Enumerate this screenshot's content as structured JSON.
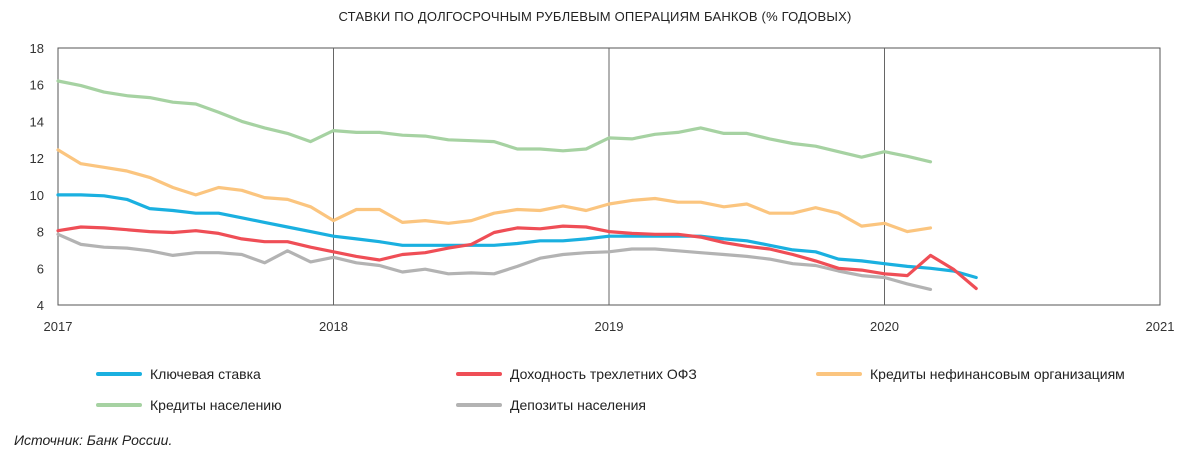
{
  "chart_data": {
    "type": "line",
    "title": "СТАВКИ ПО ДОЛГОСРОЧНЫМ РУБЛЕВЫМ ОПЕРАЦИЯМ БАНКОВ (% ГОДОВЫХ)",
    "xlabel": "",
    "ylabel": "",
    "xlim": [
      2017,
      2021
    ],
    "ylim": [
      4,
      18
    ],
    "x_ticks": [
      "2017",
      "2018",
      "2019",
      "2020",
      "2021"
    ],
    "y_ticks": [
      "4",
      "6",
      "8",
      "10",
      "12",
      "14",
      "16",
      "18"
    ],
    "grid": "vertical at years",
    "legend_position": "bottom",
    "series": [
      {
        "name": "Ключевая ставка",
        "color": "#1ab0e0",
        "x": [
          2017.0,
          2017.083,
          2017.167,
          2017.25,
          2017.333,
          2017.417,
          2017.5,
          2017.583,
          2017.667,
          2017.75,
          2017.833,
          2017.917,
          2018.0,
          2018.083,
          2018.167,
          2018.25,
          2018.333,
          2018.417,
          2018.5,
          2018.583,
          2018.667,
          2018.75,
          2018.833,
          2018.917,
          2019.0,
          2019.083,
          2019.167,
          2019.25,
          2019.333,
          2019.417,
          2019.5,
          2019.583,
          2019.667,
          2019.75,
          2019.833,
          2019.917,
          2020.0,
          2020.083,
          2020.167,
          2020.25,
          2020.333
        ],
        "y": [
          10.0,
          10.0,
          9.95,
          9.75,
          9.25,
          9.15,
          9.0,
          9.0,
          8.75,
          8.5,
          8.25,
          8.0,
          7.75,
          7.6,
          7.45,
          7.25,
          7.25,
          7.25,
          7.25,
          7.25,
          7.35,
          7.5,
          7.5,
          7.6,
          7.75,
          7.75,
          7.75,
          7.75,
          7.75,
          7.6,
          7.5,
          7.25,
          7.0,
          6.9,
          6.5,
          6.4,
          6.25,
          6.1,
          6.0,
          5.85,
          5.5
        ]
      },
      {
        "name": "Доходность трехлетних ОФЗ",
        "color": "#ef4e56",
        "x": [
          2017.0,
          2017.083,
          2017.167,
          2017.25,
          2017.333,
          2017.417,
          2017.5,
          2017.583,
          2017.667,
          2017.75,
          2017.833,
          2017.917,
          2018.0,
          2018.083,
          2018.167,
          2018.25,
          2018.333,
          2018.417,
          2018.5,
          2018.583,
          2018.667,
          2018.75,
          2018.833,
          2018.917,
          2019.0,
          2019.083,
          2019.167,
          2019.25,
          2019.333,
          2019.417,
          2019.5,
          2019.583,
          2019.667,
          2019.75,
          2019.833,
          2019.917,
          2020.0,
          2020.083,
          2020.167,
          2020.25,
          2020.333
        ],
        "y": [
          8.05,
          8.25,
          8.2,
          8.1,
          8.0,
          7.95,
          8.05,
          7.9,
          7.6,
          7.45,
          7.45,
          7.15,
          6.9,
          6.65,
          6.45,
          6.75,
          6.85,
          7.1,
          7.3,
          7.95,
          8.2,
          8.15,
          8.3,
          8.25,
          8.0,
          7.9,
          7.85,
          7.85,
          7.7,
          7.4,
          7.2,
          7.05,
          6.75,
          6.4,
          6.0,
          5.9,
          5.7,
          5.6,
          6.7,
          5.95,
          4.9
        ]
      },
      {
        "name": "Кредиты нефинансовым организациям",
        "color": "#fbc57f",
        "x": [
          2017.0,
          2017.083,
          2017.167,
          2017.25,
          2017.333,
          2017.417,
          2017.5,
          2017.583,
          2017.667,
          2017.75,
          2017.833,
          2017.917,
          2018.0,
          2018.083,
          2018.167,
          2018.25,
          2018.333,
          2018.417,
          2018.5,
          2018.583,
          2018.667,
          2018.75,
          2018.833,
          2018.917,
          2019.0,
          2019.083,
          2019.167,
          2019.25,
          2019.333,
          2019.417,
          2019.5,
          2019.583,
          2019.667,
          2019.75,
          2019.833,
          2019.917,
          2020.0,
          2020.083,
          2020.167
        ],
        "y": [
          12.45,
          11.7,
          11.5,
          11.3,
          10.95,
          10.4,
          10.0,
          10.4,
          10.25,
          9.85,
          9.75,
          9.35,
          8.6,
          9.2,
          9.2,
          8.5,
          8.6,
          8.45,
          8.6,
          9.0,
          9.2,
          9.15,
          9.4,
          9.15,
          9.5,
          9.7,
          9.8,
          9.6,
          9.6,
          9.35,
          9.5,
          9.0,
          9.0,
          9.3,
          9.0,
          8.3,
          8.45,
          8.0,
          8.2
        ]
      },
      {
        "name": "Кредиты населению",
        "color": "#a6d2a2",
        "x": [
          2017.0,
          2017.083,
          2017.167,
          2017.25,
          2017.333,
          2017.417,
          2017.5,
          2017.583,
          2017.667,
          2017.75,
          2017.833,
          2017.917,
          2018.0,
          2018.083,
          2018.167,
          2018.25,
          2018.333,
          2018.417,
          2018.5,
          2018.583,
          2018.667,
          2018.75,
          2018.833,
          2018.917,
          2019.0,
          2019.083,
          2019.167,
          2019.25,
          2019.333,
          2019.417,
          2019.5,
          2019.583,
          2019.667,
          2019.75,
          2019.833,
          2019.917,
          2020.0,
          2020.083,
          2020.167
        ],
        "y": [
          16.2,
          15.95,
          15.6,
          15.4,
          15.3,
          15.05,
          14.95,
          14.5,
          14.0,
          13.65,
          13.35,
          12.9,
          13.5,
          13.4,
          13.4,
          13.25,
          13.2,
          13.0,
          12.95,
          12.9,
          12.5,
          12.5,
          12.4,
          12.5,
          13.1,
          13.05,
          13.3,
          13.4,
          13.65,
          13.35,
          13.35,
          13.05,
          12.8,
          12.65,
          12.35,
          12.05,
          12.35,
          12.1,
          11.8
        ]
      },
      {
        "name": "Депозиты населения",
        "color": "#b3b3b3",
        "x": [
          2017.0,
          2017.083,
          2017.167,
          2017.25,
          2017.333,
          2017.417,
          2017.5,
          2017.583,
          2017.667,
          2017.75,
          2017.833,
          2017.917,
          2018.0,
          2018.083,
          2018.167,
          2018.25,
          2018.333,
          2018.417,
          2018.5,
          2018.583,
          2018.667,
          2018.75,
          2018.833,
          2018.917,
          2019.0,
          2019.083,
          2019.167,
          2019.25,
          2019.333,
          2019.417,
          2019.5,
          2019.583,
          2019.667,
          2019.75,
          2019.833,
          2019.917,
          2020.0,
          2020.083,
          2020.167
        ],
        "y": [
          7.85,
          7.3,
          7.15,
          7.1,
          6.95,
          6.7,
          6.85,
          6.85,
          6.75,
          6.3,
          6.95,
          6.35,
          6.6,
          6.3,
          6.15,
          5.8,
          5.95,
          5.7,
          5.75,
          5.7,
          6.1,
          6.55,
          6.75,
          6.85,
          6.9,
          7.05,
          7.05,
          6.95,
          6.85,
          6.75,
          6.65,
          6.5,
          6.25,
          6.15,
          5.85,
          5.6,
          5.5,
          5.15,
          4.85
        ]
      }
    ],
    "legend_layout": [
      [
        0,
        1,
        2
      ],
      [
        3,
        4
      ]
    ]
  },
  "source": "Источник: Банк России."
}
